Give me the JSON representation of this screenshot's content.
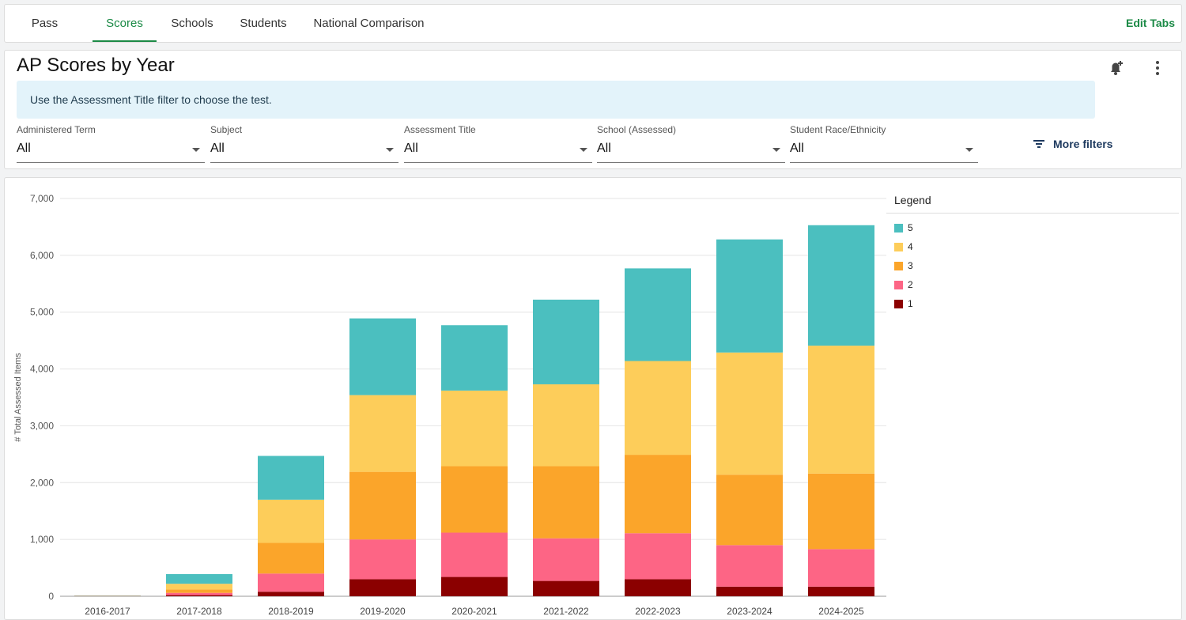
{
  "tabs": [
    {
      "label": "Pass Rates",
      "active": false
    },
    {
      "label": "Scores",
      "active": true
    },
    {
      "label": "Schools",
      "active": false
    },
    {
      "label": "Students",
      "active": false
    },
    {
      "label": "National Comparison",
      "active": false
    }
  ],
  "edit_tabs_label": "Edit Tabs",
  "panel": {
    "title": "AP Scores by Year",
    "banner": "Use the Assessment Title filter to choose the test.",
    "more_filters_label": "More filters"
  },
  "filters": [
    {
      "label": "Administered Term",
      "value": "All"
    },
    {
      "label": "Subject",
      "value": "All"
    },
    {
      "label": "Assessment Title",
      "value": "All"
    },
    {
      "label": "School (Assessed)",
      "value": "All"
    },
    {
      "label": "Student Race/Ethnicity",
      "value": "All"
    }
  ],
  "icons": {
    "bell": "bell-plus-icon",
    "menu": "kebab-menu-icon",
    "filter": "filter-lines-icon"
  },
  "chart_data": {
    "type": "bar",
    "stacked": true,
    "ylabel": "# Total Assessed Items",
    "ylim": [
      0,
      7000
    ],
    "yticks": [
      0,
      1000,
      2000,
      3000,
      4000,
      5000,
      6000,
      7000
    ],
    "ytick_labels": [
      "0",
      "1,000",
      "2,000",
      "3,000",
      "4,000",
      "5,000",
      "6,000",
      "7,000"
    ],
    "grid": true,
    "legend_title": "Legend",
    "legend_position": "right",
    "categories": [
      "2016-2017",
      "2017-2018",
      "2018-2019",
      "2019-2020",
      "2020-2021",
      "2021-2022",
      "2022-2023",
      "2023-2024",
      "2024-2025"
    ],
    "series": [
      {
        "name": "1",
        "color": "#8b0000",
        "values": [
          2,
          20,
          80,
          300,
          340,
          270,
          300,
          170,
          170
        ]
      },
      {
        "name": "2",
        "color": "#fd6585",
        "values": [
          3,
          40,
          320,
          700,
          780,
          750,
          810,
          730,
          660
        ]
      },
      {
        "name": "3",
        "color": "#fba52a",
        "values": [
          3,
          60,
          540,
          1190,
          1170,
          1270,
          1380,
          1240,
          1330
        ]
      },
      {
        "name": "4",
        "color": "#fdcd5a",
        "values": [
          2,
          100,
          760,
          1350,
          1330,
          1440,
          1650,
          2150,
          2250
        ]
      },
      {
        "name": "5",
        "color": "#4bbfbf",
        "values": [
          5,
          170,
          770,
          1350,
          1150,
          1490,
          1630,
          1990,
          2120
        ]
      }
    ]
  }
}
